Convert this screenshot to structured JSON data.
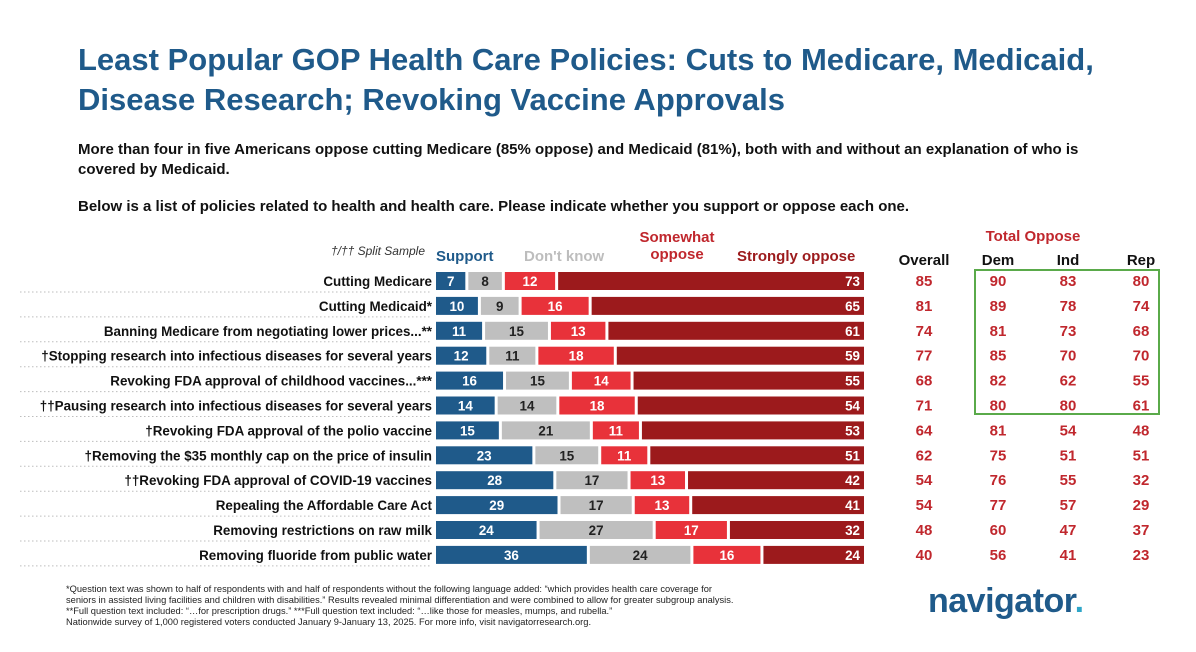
{
  "title": "Least Popular GOP Health Care Policies: Cuts to Medicare, Medicaid, Disease Research; Revoking Vaccine Approvals",
  "subtitle": "More than four in five Americans oppose cutting Medicare (85% oppose) and Medicaid (81%), both with and without an explanation of who is covered by Medicaid.",
  "question": "Below is a list of policies related to health and health care. Please indicate whether you support or oppose each one.",
  "split_note": "†/†† Split Sample",
  "legend": {
    "support": "Support",
    "dont_know": "Don't know",
    "somewhat_oppose_1": "Somewhat",
    "somewhat_oppose_2": "oppose",
    "strongly_oppose": "Strongly oppose"
  },
  "table_headers": {
    "overall": "Overall",
    "total_oppose": "Total Oppose",
    "dem": "Dem",
    "ind": "Ind",
    "rep": "Rep"
  },
  "colors": {
    "support": "#1f5a8a",
    "dont_know": "#bfbfbf",
    "somewhat_oppose": "#e8323a",
    "strongly_oppose": "#9c1a1c",
    "table_red": "#c0272d",
    "highlight_box": "#5aaa4a"
  },
  "chart_data": {
    "type": "bar",
    "orientation": "horizontal",
    "stacked": true,
    "categories": [
      "Cutting Medicare",
      "Cutting Medicaid*",
      "Banning Medicare from negotiating lower prices...**",
      "†Stopping research into infectious diseases for several years",
      "Revoking FDA approval of childhood vaccines...***",
      "††Pausing research into infectious diseases for several years",
      "†Revoking FDA approval of the polio vaccine",
      "†Removing the $35 monthly cap on the price of insulin",
      "††Revoking FDA approval of COVID-19 vaccines",
      "Repealing the Affordable Care Act",
      "Removing restrictions on raw milk",
      "Removing fluoride from public water"
    ],
    "series": [
      {
        "name": "Support",
        "values": [
          7,
          10,
          11,
          12,
          16,
          14,
          15,
          23,
          28,
          29,
          24,
          36
        ]
      },
      {
        "name": "Don't know",
        "values": [
          8,
          9,
          15,
          11,
          15,
          14,
          21,
          15,
          17,
          17,
          27,
          24
        ]
      },
      {
        "name": "Somewhat oppose",
        "values": [
          12,
          16,
          13,
          18,
          14,
          18,
          11,
          11,
          13,
          13,
          17,
          16
        ]
      },
      {
        "name": "Strongly oppose",
        "values": [
          73,
          65,
          61,
          59,
          55,
          54,
          53,
          51,
          42,
          41,
          32,
          24
        ]
      }
    ],
    "table": {
      "overall": [
        85,
        81,
        74,
        77,
        68,
        71,
        64,
        62,
        54,
        54,
        48,
        40
      ],
      "dem": [
        90,
        89,
        81,
        85,
        82,
        80,
        81,
        75,
        76,
        77,
        60,
        56
      ],
      "ind": [
        83,
        78,
        73,
        70,
        62,
        80,
        54,
        51,
        55,
        57,
        47,
        41
      ],
      "rep": [
        80,
        74,
        68,
        70,
        55,
        61,
        48,
        51,
        32,
        29,
        37,
        23
      ]
    }
  },
  "footnotes": [
    "*Question text was shown to half of respondents with and half of respondents without the following language added: “which provides health care coverage for",
    "seniors in assisted living facilities and children with disabilities.” Results revealed minimal differentiation and were combined to allow for greater subgroup analysis.",
    "**Full question text included: “…for prescription drugs.” ***Full question text included: “…like those for measles, mumps, and rubella.”",
    "Nationwide survey of 1,000 registered voters conducted January 9-January 13, 2025. For more info, visit navigatorresearch.org."
  ],
  "logo": {
    "text": "navigator",
    "dot": "."
  }
}
